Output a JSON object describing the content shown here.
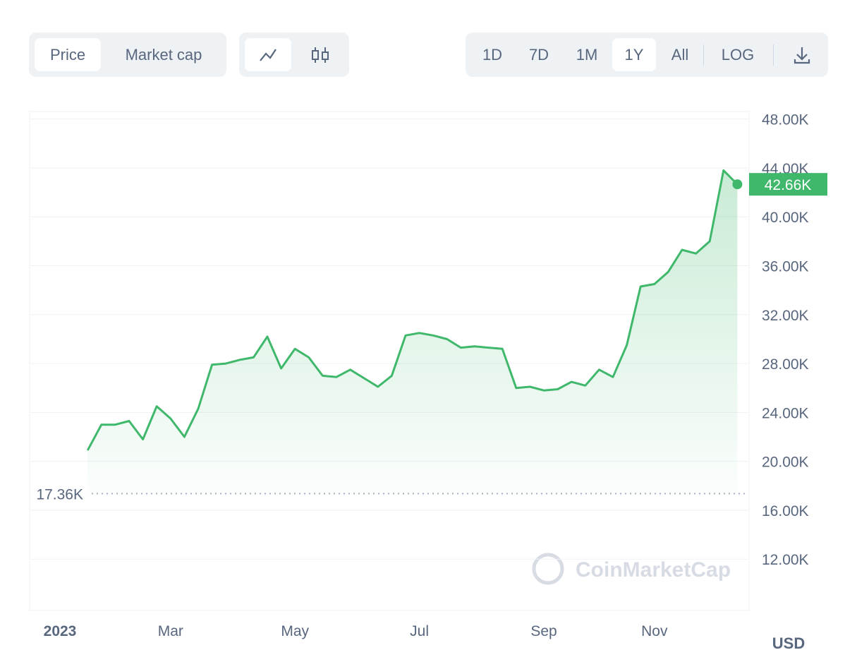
{
  "ui": {
    "tabs": [
      "Price",
      "Market cap"
    ],
    "ranges": [
      "1D",
      "7D",
      "1M",
      "1Y",
      "All"
    ],
    "log": "LOG",
    "watermark": "CoinMarketCap",
    "currency": "USD"
  },
  "chart_data": {
    "type": "line",
    "categories": [
      "2023",
      null,
      null,
      null,
      null,
      null,
      null,
      null,
      "Mar",
      null,
      null,
      null,
      null,
      null,
      null,
      null,
      null,
      "May",
      null,
      null,
      null,
      null,
      null,
      null,
      null,
      null,
      "Jul",
      null,
      null,
      null,
      null,
      null,
      null,
      null,
      null,
      "Sep",
      null,
      null,
      null,
      null,
      null,
      null,
      null,
      "Nov",
      null,
      null,
      null,
      null,
      null,
      null
    ],
    "values": [
      null,
      null,
      20900,
      23000,
      23000,
      23300,
      21800,
      24500,
      23500,
      22000,
      24300,
      27900,
      28000,
      28300,
      28500,
      30200,
      27600,
      29200,
      28500,
      27000,
      26900,
      27500,
      26800,
      26100,
      27000,
      30300,
      30500,
      30300,
      30000,
      29300,
      29400,
      29300,
      29200,
      26000,
      26100,
      25800,
      25900,
      26500,
      26200,
      27500,
      26900,
      29500,
      34300,
      34500,
      35500,
      37300,
      37000,
      38000,
      43800,
      42660
    ],
    "value_labels": [
      null,
      null,
      null,
      null,
      null,
      null,
      null,
      null,
      null,
      null,
      null,
      null,
      null,
      null,
      null,
      null,
      null,
      null,
      null,
      null,
      null,
      null,
      null,
      null,
      null,
      null,
      null,
      null,
      null,
      null,
      null,
      null,
      null,
      null,
      null,
      null,
      null,
      null,
      null,
      null,
      null,
      null,
      null,
      null,
      null,
      null,
      null,
      null,
      null,
      "42.66K"
    ],
    "color": "#3fb86b",
    "baseline": {
      "value": 17360,
      "label": "17.36K"
    },
    "ylim": [
      7800,
      48500
    ],
    "yticks": [
      {
        "value": 12000,
        "label": "12.00K"
      },
      {
        "value": 16000,
        "label": "16.00K"
      },
      {
        "value": 20000,
        "label": "20.00K"
      },
      {
        "value": 24000,
        "label": "24.00K"
      },
      {
        "value": 28000,
        "label": "28.00K"
      },
      {
        "value": 32000,
        "label": "32.00K"
      },
      {
        "value": 36000,
        "label": "36.00K"
      },
      {
        "value": 40000,
        "label": "40.00K"
      },
      {
        "value": 44000,
        "label": "44.00K"
      },
      {
        "value": 48000,
        "label": "48.00K"
      }
    ],
    "grid": true
  }
}
